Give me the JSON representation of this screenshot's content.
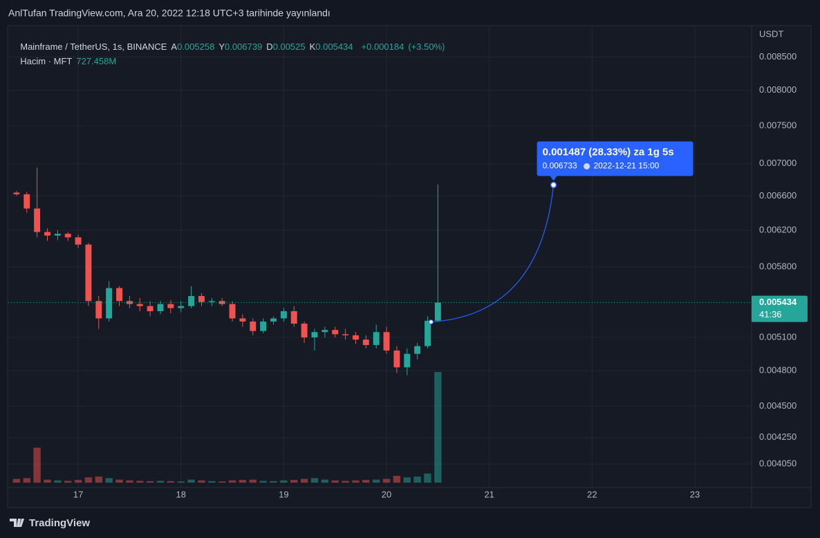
{
  "header": {
    "title": "AnlTufan TradingView.com, Ara 20, 2022 12:18 UTC+3 tarihinde yayınlandı"
  },
  "footer": {
    "brand": "TradingView"
  },
  "chart_data": {
    "type": "candlestick",
    "symbol": "Mainframe / TetherUS, 1s, BINANCE",
    "ohlc_legend": [
      {
        "key": "A",
        "value": 0.005258
      },
      {
        "key": "Y",
        "value": 0.006739
      },
      {
        "key": "D",
        "value": 0.00525
      },
      {
        "key": "K",
        "value": 0.005434
      }
    ],
    "change": {
      "value": 0.000184,
      "label": "+0.000184"
    },
    "change_pct": {
      "value": 3.5,
      "label": "(+3.50%)"
    },
    "volume_name": "Hacim · MFT",
    "volume_value": {
      "value": 727458000,
      "label": "727.458M"
    },
    "y_unit": "USDT",
    "log_scale": true,
    "grid": true,
    "up_color": "#26a69a",
    "down_color": "#ef5350",
    "x": [
      16.4,
      16.5,
      16.6,
      16.7,
      16.8,
      16.9,
      17.0,
      17.1,
      17.2,
      17.3,
      17.4,
      17.5,
      17.6,
      17.7,
      17.8,
      17.9,
      18.0,
      18.1,
      18.2,
      18.3,
      18.4,
      18.5,
      18.6,
      18.7,
      18.8,
      18.9,
      19.0,
      19.1,
      19.2,
      19.3,
      19.4,
      19.5,
      19.6,
      19.7,
      19.8,
      19.9,
      20.0,
      20.1,
      20.2,
      20.3,
      20.4,
      20.5
    ],
    "open": [
      0.00664,
      0.00662,
      0.00645,
      0.00618,
      0.00614,
      0.00616,
      0.00612,
      0.00604,
      0.00545,
      0.00528,
      0.00558,
      0.00545,
      0.00542,
      0.0054,
      0.00535,
      0.00542,
      0.00538,
      0.0054,
      0.0055,
      0.00544,
      0.00545,
      0.00542,
      0.00528,
      0.00525,
      0.00516,
      0.00525,
      0.00528,
      0.00535,
      0.00523,
      0.0051,
      0.00515,
      0.00517,
      0.00513,
      0.00512,
      0.00508,
      0.00503,
      0.00515,
      0.00498,
      0.00483,
      0.00495,
      0.00502,
      0.005258
    ],
    "high": [
      0.00666,
      0.00665,
      0.00695,
      0.00622,
      0.0062,
      0.00618,
      0.00615,
      0.00606,
      0.0055,
      0.00565,
      0.0056,
      0.0055,
      0.00548,
      0.00545,
      0.00545,
      0.00546,
      0.00545,
      0.0056,
      0.00553,
      0.00548,
      0.00548,
      0.00545,
      0.00532,
      0.00528,
      0.00528,
      0.0053,
      0.00538,
      0.0054,
      0.00525,
      0.00518,
      0.0052,
      0.0052,
      0.00518,
      0.00515,
      0.00512,
      0.00522,
      0.0052,
      0.00502,
      0.005,
      0.00505,
      0.0053,
      0.006739
    ],
    "low": [
      0.0066,
      0.0064,
      0.00612,
      0.00608,
      0.00609,
      0.00608,
      0.006,
      0.0054,
      0.00518,
      0.00525,
      0.0054,
      0.00538,
      0.00535,
      0.0053,
      0.00532,
      0.00533,
      0.00534,
      0.00538,
      0.0054,
      0.0054,
      0.0054,
      0.00525,
      0.0052,
      0.00512,
      0.00514,
      0.00522,
      0.00525,
      0.0052,
      0.00505,
      0.00498,
      0.0051,
      0.0051,
      0.00508,
      0.00504,
      0.005,
      0.005,
      0.00495,
      0.00478,
      0.00476,
      0.0049,
      0.005,
      0.00525
    ],
    "close": [
      0.00662,
      0.00645,
      0.00618,
      0.00614,
      0.00616,
      0.00612,
      0.00604,
      0.00545,
      0.00528,
      0.00558,
      0.00545,
      0.00542,
      0.0054,
      0.00535,
      0.00542,
      0.00538,
      0.0054,
      0.0055,
      0.00544,
      0.00545,
      0.00542,
      0.00528,
      0.00525,
      0.00516,
      0.00525,
      0.00528,
      0.00535,
      0.00523,
      0.0051,
      0.00515,
      0.00517,
      0.00513,
      0.00512,
      0.00508,
      0.00503,
      0.00515,
      0.00498,
      0.00483,
      0.00495,
      0.00502,
      0.005258,
      0.005434
    ],
    "volume": [
      25000000,
      30000000,
      230000000,
      20000000,
      15000000,
      12000000,
      18000000,
      35000000,
      40000000,
      30000000,
      20000000,
      15000000,
      12000000,
      10000000,
      12000000,
      10000000,
      8000000,
      20000000,
      15000000,
      10000000,
      8000000,
      15000000,
      18000000,
      20000000,
      12000000,
      10000000,
      15000000,
      18000000,
      25000000,
      30000000,
      20000000,
      15000000,
      12000000,
      15000000,
      18000000,
      20000000,
      25000000,
      45000000,
      35000000,
      40000000,
      60000000,
      727458000
    ],
    "y2lim": [
      0,
      3000000000
    ],
    "xlim": [
      16.32,
      23.545
    ],
    "xticks": [
      17,
      18,
      19,
      20,
      21,
      22,
      23
    ],
    "ylim": [
      0.00388,
      0.00899
    ],
    "yticks": [
      {
        "value": 0.0085,
        "label": "0.008500"
      },
      {
        "value": 0.008,
        "label": "0.008000"
      },
      {
        "value": 0.0075,
        "label": "0.007500"
      },
      {
        "value": 0.007,
        "label": "0.007000"
      },
      {
        "value": 0.0066,
        "label": "0.006600"
      },
      {
        "value": 0.0062,
        "label": "0.006200"
      },
      {
        "value": 0.0058,
        "label": "0.005800"
      },
      {
        "value": 0.0051,
        "label": "0.005100"
      },
      {
        "value": 0.0048,
        "label": "0.004800"
      },
      {
        "value": 0.0045,
        "label": "0.004500"
      },
      {
        "value": 0.00425,
        "label": "0.004250"
      },
      {
        "value": 0.00405,
        "label": "0.004050"
      }
    ],
    "last_price": 0.005434,
    "countdown": "41:36",
    "annotation": {
      "text": "0.001487 (28.33%) za 1g 5s",
      "from": 0.005246,
      "price": 0.006733,
      "time": "2022-12-21  15:00",
      "x": 21.625,
      "color": "#2962ff"
    }
  }
}
